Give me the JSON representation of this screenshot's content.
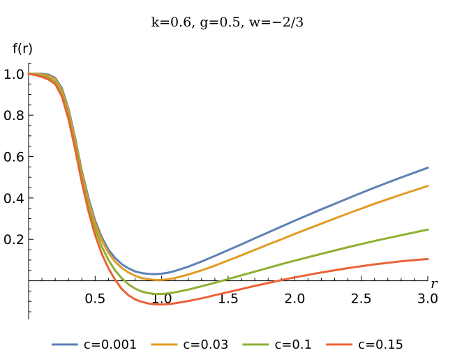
{
  "chart_data": {
    "type": "line",
    "title": "k=0.6, g=0.5, w=−2/3",
    "xlabel": "r",
    "ylabel": "f(r)",
    "xlim": [
      0.0,
      3.0
    ],
    "ylim": [
      -0.18,
      1.06
    ],
    "x_ticks": [
      {
        "value": 0.5,
        "label": "0.5"
      },
      {
        "value": 1.0,
        "label": "1.0"
      },
      {
        "value": 1.5,
        "label": "1.5"
      },
      {
        "value": 2.0,
        "label": "2.0"
      },
      {
        "value": 2.5,
        "label": "2.5"
      },
      {
        "value": 3.0,
        "label": "3.0"
      }
    ],
    "y_ticks": [
      {
        "value": 0.2,
        "label": "0.2"
      },
      {
        "value": 0.4,
        "label": "0.4"
      },
      {
        "value": 0.6,
        "label": "0.6"
      },
      {
        "value": 0.8,
        "label": "0.8"
      },
      {
        "value": 1.0,
        "label": "1.0"
      }
    ],
    "grid": false,
    "legend_position": "bottom",
    "series": [
      {
        "name": "c=0.001",
        "color": "#5e81b5",
        "points": [
          [
            0.0,
            1.0
          ],
          [
            0.05,
            1.0
          ],
          [
            0.1,
            1.0
          ],
          [
            0.15,
            0.996
          ],
          [
            0.2,
            0.98
          ],
          [
            0.25,
            0.93
          ],
          [
            0.3,
            0.83
          ],
          [
            0.35,
            0.69
          ],
          [
            0.4,
            0.53
          ],
          [
            0.45,
            0.4
          ],
          [
            0.5,
            0.29
          ],
          [
            0.55,
            0.21
          ],
          [
            0.6,
            0.15
          ],
          [
            0.65,
            0.11
          ],
          [
            0.7,
            0.08
          ],
          [
            0.75,
            0.06
          ],
          [
            0.8,
            0.045
          ],
          [
            0.85,
            0.037
          ],
          [
            0.9,
            0.033
          ],
          [
            0.95,
            0.032
          ],
          [
            1.0,
            0.034
          ],
          [
            1.05,
            0.039
          ],
          [
            1.1,
            0.047
          ],
          [
            1.2,
            0.068
          ],
          [
            1.3,
            0.093
          ],
          [
            1.4,
            0.12
          ],
          [
            1.5,
            0.148
          ],
          [
            1.6,
            0.176
          ],
          [
            1.7,
            0.205
          ],
          [
            1.8,
            0.233
          ],
          [
            1.9,
            0.262
          ],
          [
            2.0,
            0.29
          ],
          [
            2.2,
            0.345
          ],
          [
            2.4,
            0.398
          ],
          [
            2.6,
            0.45
          ],
          [
            2.8,
            0.499
          ],
          [
            3.0,
            0.546
          ]
        ]
      },
      {
        "name": "c=0.03",
        "color": "#e19c24",
        "points": [
          [
            0.0,
            1.0
          ],
          [
            0.05,
            0.999
          ],
          [
            0.1,
            0.997
          ],
          [
            0.15,
            0.99
          ],
          [
            0.2,
            0.974
          ],
          [
            0.25,
            0.92
          ],
          [
            0.3,
            0.82
          ],
          [
            0.35,
            0.68
          ],
          [
            0.4,
            0.52
          ],
          [
            0.45,
            0.385
          ],
          [
            0.5,
            0.275
          ],
          [
            0.55,
            0.195
          ],
          [
            0.6,
            0.135
          ],
          [
            0.65,
            0.092
          ],
          [
            0.7,
            0.062
          ],
          [
            0.75,
            0.04
          ],
          [
            0.8,
            0.024
          ],
          [
            0.85,
            0.013
          ],
          [
            0.9,
            0.007
          ],
          [
            0.95,
            0.004
          ],
          [
            1.0,
            0.004
          ],
          [
            1.05,
            0.007
          ],
          [
            1.1,
            0.013
          ],
          [
            1.2,
            0.03
          ],
          [
            1.3,
            0.05
          ],
          [
            1.4,
            0.073
          ],
          [
            1.5,
            0.098
          ],
          [
            1.6,
            0.123
          ],
          [
            1.7,
            0.149
          ],
          [
            1.8,
            0.175
          ],
          [
            1.9,
            0.2
          ],
          [
            2.0,
            0.226
          ],
          [
            2.2,
            0.276
          ],
          [
            2.4,
            0.325
          ],
          [
            2.6,
            0.372
          ],
          [
            2.8,
            0.416
          ],
          [
            3.0,
            0.458
          ]
        ]
      },
      {
        "name": "c=0.1",
        "color": "#8fb032",
        "points": [
          [
            0.0,
            1.0
          ],
          [
            0.05,
            0.996
          ],
          [
            0.1,
            0.99
          ],
          [
            0.15,
            0.98
          ],
          [
            0.2,
            0.96
          ],
          [
            0.25,
            0.905
          ],
          [
            0.3,
            0.8
          ],
          [
            0.35,
            0.66
          ],
          [
            0.4,
            0.5
          ],
          [
            0.45,
            0.36
          ],
          [
            0.5,
            0.25
          ],
          [
            0.55,
            0.165
          ],
          [
            0.6,
            0.1
          ],
          [
            0.65,
            0.05
          ],
          [
            0.7,
            0.012
          ],
          [
            0.75,
            -0.017
          ],
          [
            0.8,
            -0.038
          ],
          [
            0.85,
            -0.052
          ],
          [
            0.9,
            -0.06
          ],
          [
            0.95,
            -0.064
          ],
          [
            1.0,
            -0.064
          ],
          [
            1.05,
            -0.061
          ],
          [
            1.1,
            -0.056
          ],
          [
            1.2,
            -0.043
          ],
          [
            1.3,
            -0.027
          ],
          [
            1.4,
            -0.01
          ],
          [
            1.5,
            0.008
          ],
          [
            1.6,
            0.026
          ],
          [
            1.7,
            0.044
          ],
          [
            1.8,
            0.062
          ],
          [
            1.9,
            0.08
          ],
          [
            2.0,
            0.097
          ],
          [
            2.2,
            0.13
          ],
          [
            2.4,
            0.162
          ],
          [
            2.6,
            0.192
          ],
          [
            2.8,
            0.22
          ],
          [
            3.0,
            0.247
          ]
        ]
      },
      {
        "name": "c=0.15",
        "color": "#eb6235",
        "points": [
          [
            0.0,
            1.0
          ],
          [
            0.05,
            0.994
          ],
          [
            0.1,
            0.985
          ],
          [
            0.15,
            0.972
          ],
          [
            0.2,
            0.95
          ],
          [
            0.25,
            0.89
          ],
          [
            0.3,
            0.78
          ],
          [
            0.35,
            0.635
          ],
          [
            0.4,
            0.475
          ],
          [
            0.45,
            0.335
          ],
          [
            0.5,
            0.22
          ],
          [
            0.55,
            0.13
          ],
          [
            0.6,
            0.06
          ],
          [
            0.65,
            0.005
          ],
          [
            0.7,
            -0.04
          ],
          [
            0.75,
            -0.07
          ],
          [
            0.8,
            -0.09
          ],
          [
            0.85,
            -0.102
          ],
          [
            0.9,
            -0.11
          ],
          [
            0.95,
            -0.114
          ],
          [
            1.0,
            -0.115
          ],
          [
            1.05,
            -0.113
          ],
          [
            1.1,
            -0.109
          ],
          [
            1.2,
            -0.098
          ],
          [
            1.3,
            -0.085
          ],
          [
            1.4,
            -0.07
          ],
          [
            1.5,
            -0.055
          ],
          [
            1.6,
            -0.04
          ],
          [
            1.7,
            -0.025
          ],
          [
            1.8,
            -0.011
          ],
          [
            1.9,
            0.003
          ],
          [
            2.0,
            0.016
          ],
          [
            2.2,
            0.04
          ],
          [
            2.4,
            0.061
          ],
          [
            2.6,
            0.079
          ],
          [
            2.8,
            0.094
          ],
          [
            3.0,
            0.105
          ]
        ]
      }
    ]
  }
}
